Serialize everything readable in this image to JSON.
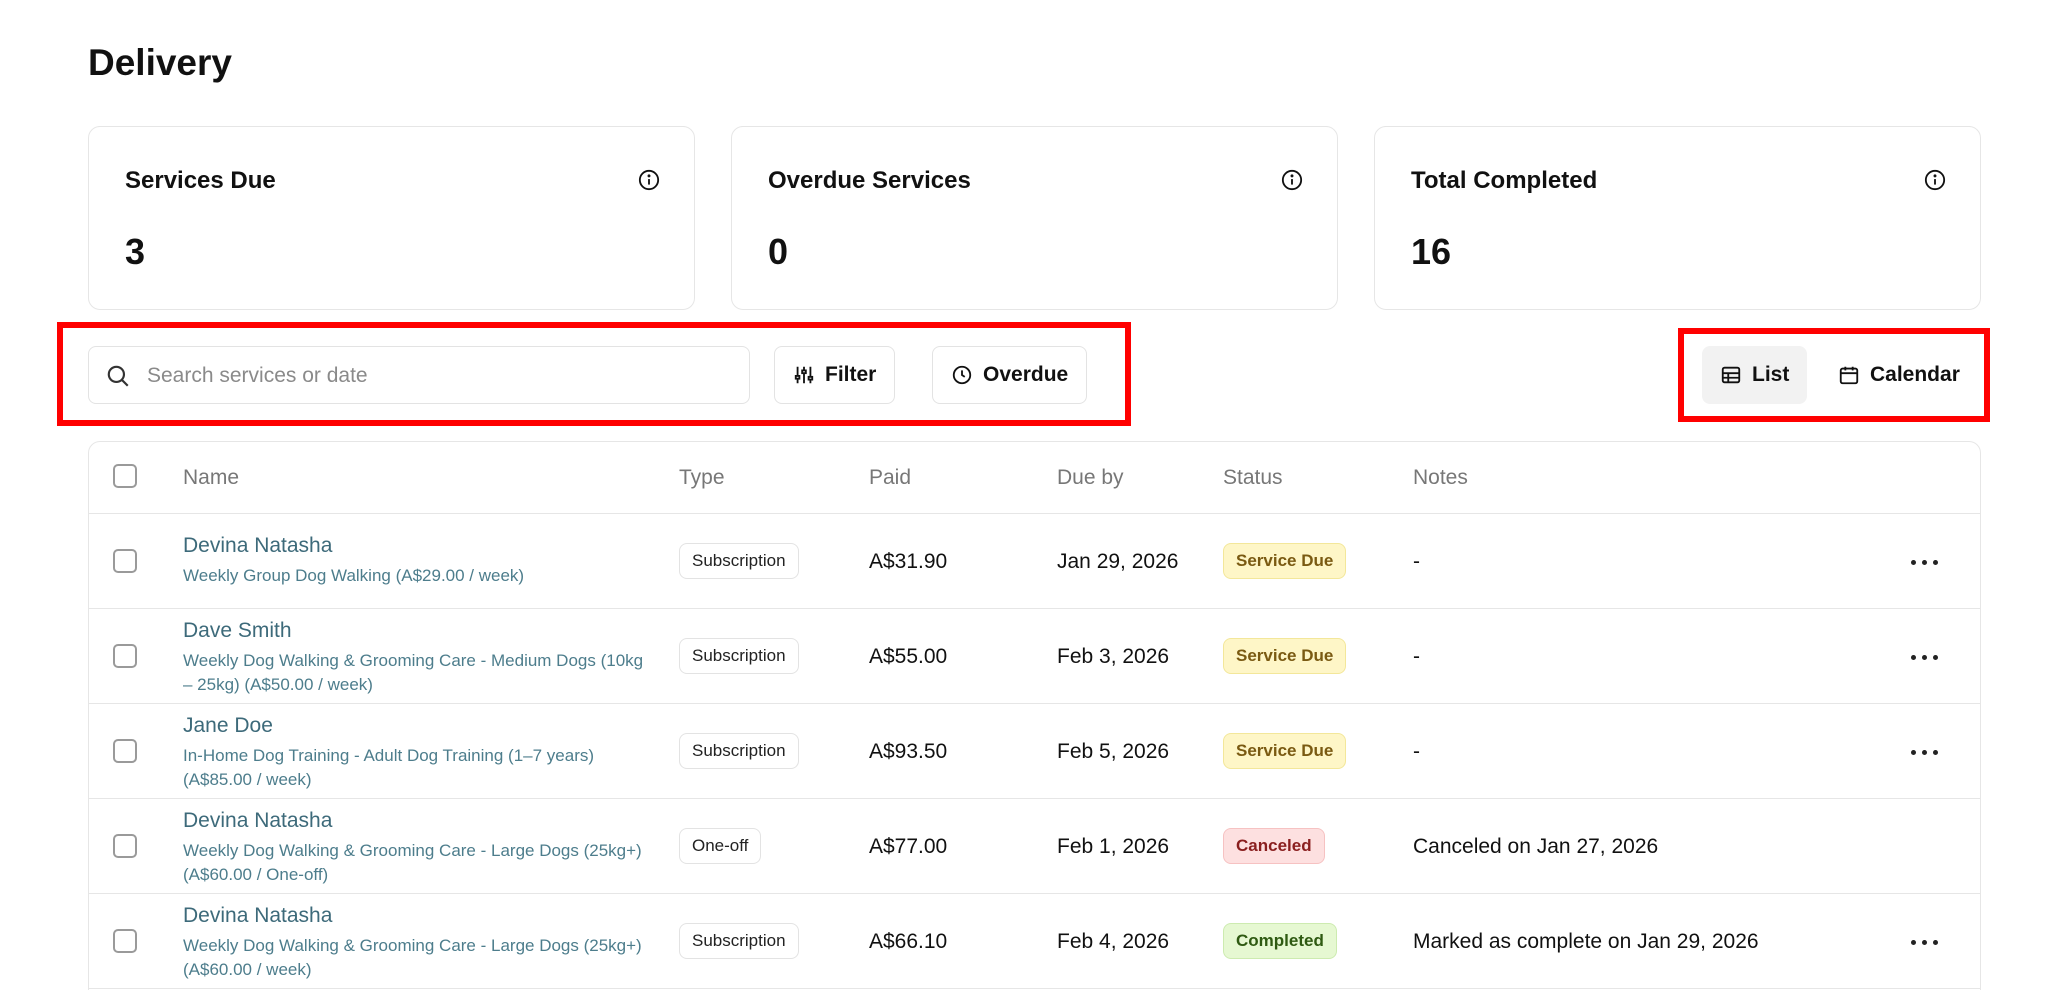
{
  "page": {
    "title": "Delivery"
  },
  "stats": [
    {
      "label": "Services Due",
      "value": "3"
    },
    {
      "label": "Overdue Services",
      "value": "0"
    },
    {
      "label": "Total Completed",
      "value": "16"
    }
  ],
  "toolbar": {
    "search_placeholder": "Search services or date",
    "filter_label": "Filter",
    "overdue_label": "Overdue",
    "list_label": "List",
    "calendar_label": "Calendar",
    "active_view": "List"
  },
  "table": {
    "headers": {
      "name": "Name",
      "type": "Type",
      "paid": "Paid",
      "due": "Due by",
      "status": "Status",
      "notes": "Notes"
    },
    "rows": [
      {
        "name": "Devina Natasha",
        "desc": "Weekly Group Dog Walking (A$29.00 / week)",
        "type": "Subscription",
        "paid": "A$31.90",
        "due": "Jan 29, 2026",
        "status": "Service Due",
        "notes": "-"
      },
      {
        "name": "Dave Smith",
        "desc": "Weekly Dog Walking & Grooming Care - Medium Dogs (10kg – 25kg) (A$50.00 / week)",
        "type": "Subscription",
        "paid": "A$55.00",
        "due": "Feb 3, 2026",
        "status": "Service Due",
        "notes": "-"
      },
      {
        "name": "Jane Doe",
        "desc": "In-Home Dog Training - Adult Dog Training (1–7 years) (A$85.00 / week)",
        "type": "Subscription",
        "paid": "A$93.50",
        "due": "Feb 5, 2026",
        "status": "Service Due",
        "notes": "-"
      },
      {
        "name": "Devina Natasha",
        "desc": "Weekly Dog Walking & Grooming Care - Large Dogs (25kg+) (A$60.00 / One-off)",
        "type": "One-off",
        "paid": "A$77.00",
        "due": "Feb 1, 2026",
        "status": "Canceled",
        "notes": "Canceled on Jan 27, 2026"
      },
      {
        "name": "Devina Natasha",
        "desc": "Weekly Dog Walking & Grooming Care - Large Dogs (25kg+) (A$60.00 / week)",
        "type": "Subscription",
        "paid": "A$66.10",
        "due": "Feb 4, 2026",
        "status": "Completed",
        "notes": "Marked as complete on Jan 29, 2026"
      }
    ]
  },
  "colors": {
    "highlight": "#ff0000",
    "link_text": "#3d6a7a",
    "status_due_bg": "#fef6c7",
    "status_canceled_bg": "#fde0e0",
    "status_completed_bg": "#e6f8d2"
  }
}
